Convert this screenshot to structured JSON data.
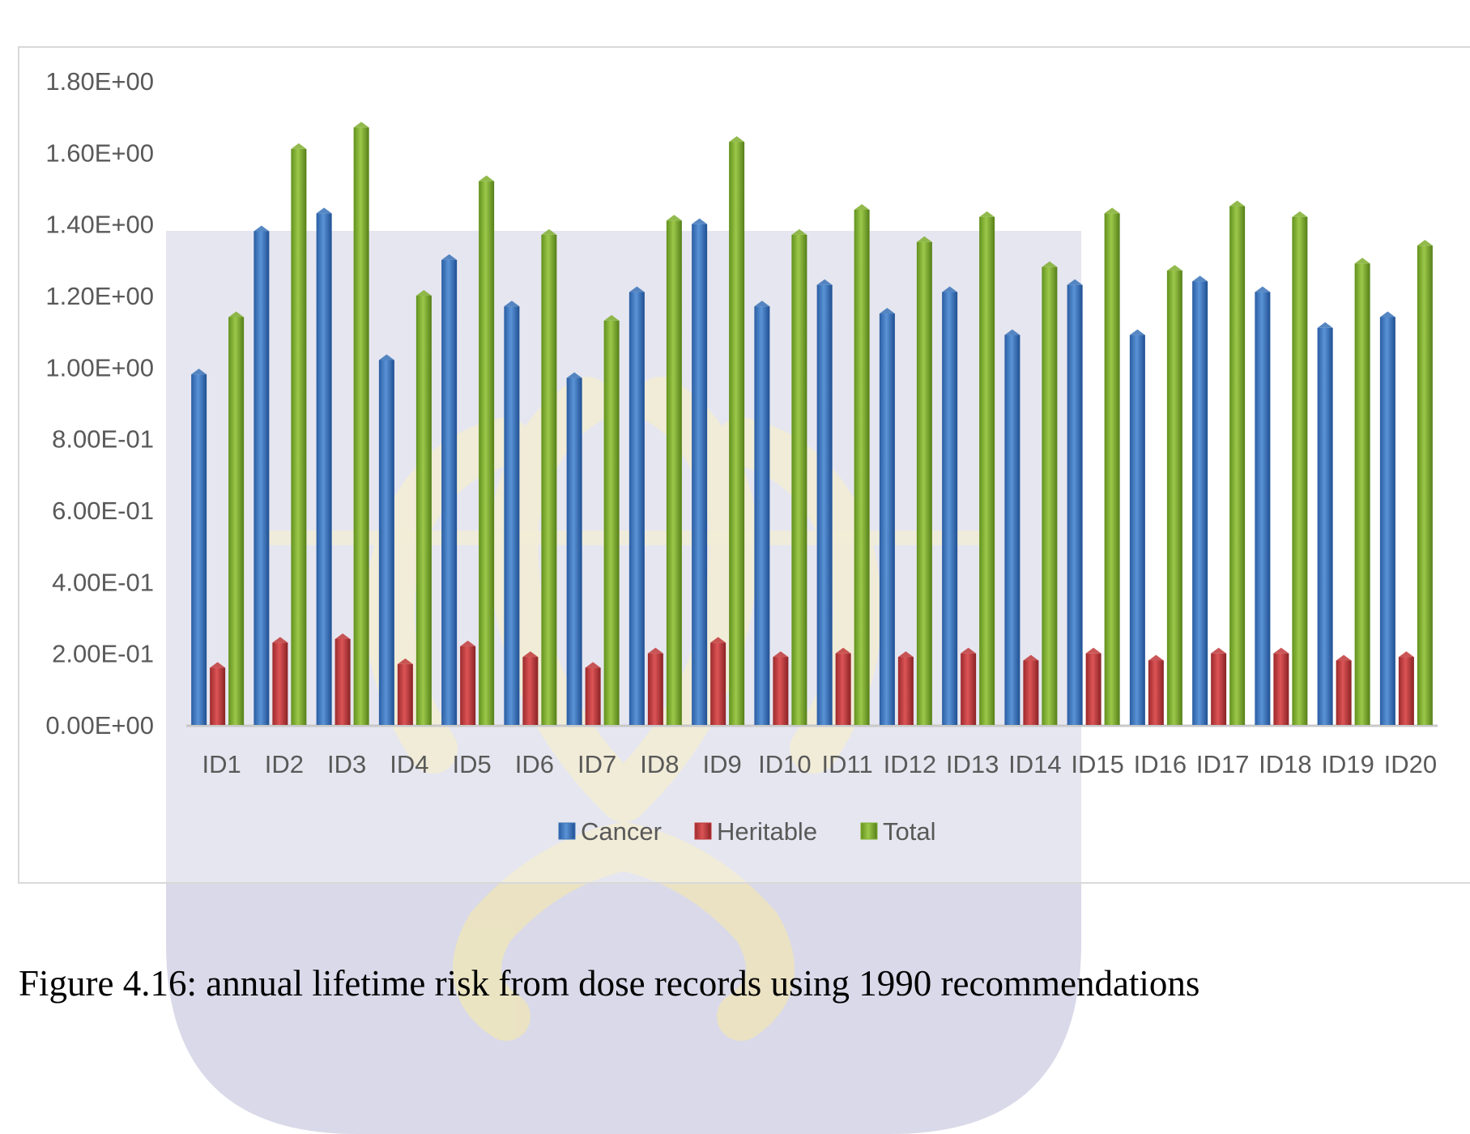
{
  "chart_data": {
    "type": "bar",
    "title": "",
    "xlabel": "",
    "ylabel": "",
    "ylim": [
      0,
      1.8
    ],
    "y_ticks": [
      {
        "value": 0,
        "label": "0.00E+00"
      },
      {
        "value": 0.2,
        "label": "2.00E-01"
      },
      {
        "value": 0.4,
        "label": "4.00E-01"
      },
      {
        "value": 0.6,
        "label": "6.00E-01"
      },
      {
        "value": 0.8,
        "label": "8.00E-01"
      },
      {
        "value": 1.0,
        "label": "1.00E+00"
      },
      {
        "value": 1.2,
        "label": "1.20E+00"
      },
      {
        "value": 1.4,
        "label": "1.40E+00"
      },
      {
        "value": 1.6,
        "label": "1.60E+00"
      },
      {
        "value": 1.8,
        "label": "1.80E+00"
      }
    ],
    "grid": false,
    "legend_position": "bottom",
    "categories": [
      "ID1",
      "ID2",
      "ID3",
      "ID4",
      "ID5",
      "ID6",
      "ID7",
      "ID8",
      "ID9",
      "ID10",
      "ID11",
      "ID12",
      "ID13",
      "ID14",
      "ID15",
      "ID16",
      "ID17",
      "ID18",
      "ID19",
      "ID20"
    ],
    "series": [
      {
        "name": "Cancer",
        "color": "#3a73b9",
        "values": [
          0.98,
          1.38,
          1.43,
          1.02,
          1.3,
          1.17,
          0.97,
          1.21,
          1.4,
          1.17,
          1.23,
          1.15,
          1.21,
          1.09,
          1.23,
          1.09,
          1.24,
          1.21,
          1.11,
          1.14
        ]
      },
      {
        "name": "Heritable",
        "color": "#c1393b",
        "values": [
          0.16,
          0.23,
          0.24,
          0.17,
          0.22,
          0.19,
          0.16,
          0.2,
          0.23,
          0.19,
          0.2,
          0.19,
          0.2,
          0.18,
          0.2,
          0.18,
          0.2,
          0.2,
          0.18,
          0.19
        ]
      },
      {
        "name": "Total",
        "color": "#7fae2e",
        "values": [
          1.14,
          1.61,
          1.67,
          1.2,
          1.52,
          1.37,
          1.13,
          1.41,
          1.63,
          1.37,
          1.44,
          1.35,
          1.42,
          1.28,
          1.43,
          1.27,
          1.45,
          1.42,
          1.29,
          1.34
        ]
      }
    ]
  },
  "caption": {
    "text": "Figure 4.16: annual lifetime risk from dose records using 1990 recommendations"
  }
}
